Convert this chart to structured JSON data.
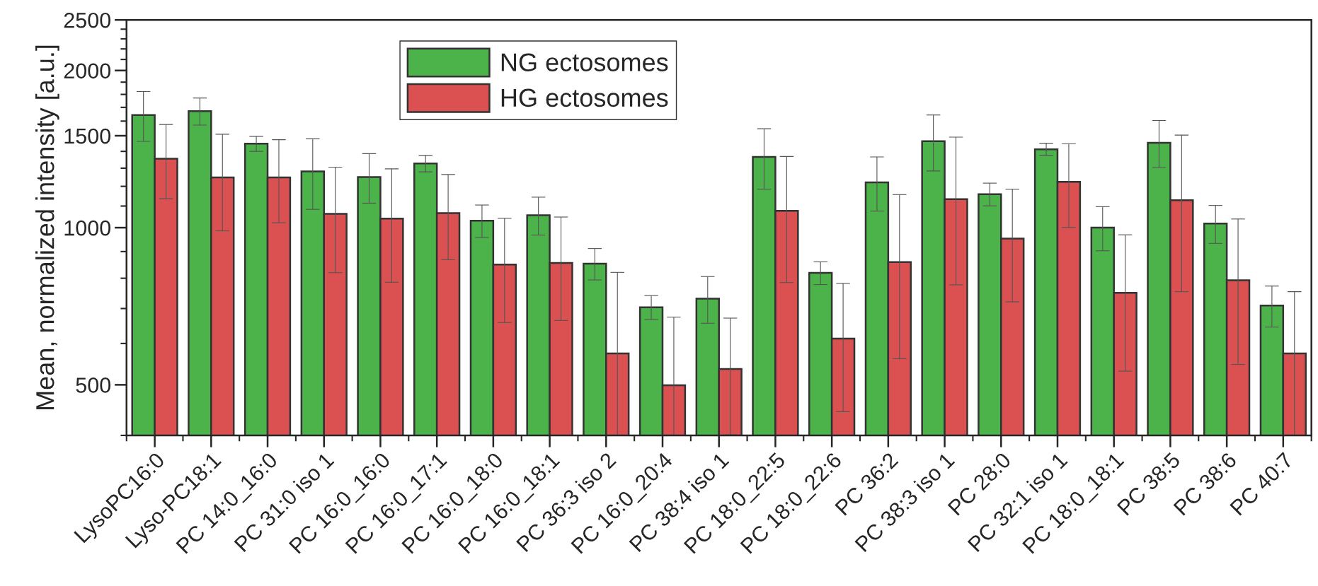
{
  "chart_data": {
    "type": "bar",
    "ylabel": "Mean, normalized intensity [a.u.]",
    "categories": [
      "LysoPC16:0",
      "Lyso-PC18:1",
      "PC 14:0_16:0",
      "PC 31:0 iso 1",
      "PC 16:0_16:0",
      "PC 16:0_17:1",
      "PC 16:0_18:0",
      "PC 16:0_18:1",
      "PC 36:3 iso 2",
      "PC 16:0_20:4",
      "PC 38:4 iso 1",
      "PC 18:0_22:5",
      "PC 18:0_22:6",
      "PC 36:2",
      "PC 38:3 iso 1",
      "PC 28:0",
      "PC 32:1 iso 1",
      "PC 18:0_18:1",
      "PC 38:5",
      "PC 38:6",
      "PC 40:7"
    ],
    "series": [
      {
        "name": "NG ectosomes",
        "color": "#4cb34a",
        "values": [
          1643,
          1672,
          1448,
          1282,
          1250,
          1327,
          1031,
          1056,
          853,
          704,
          731,
          1366,
          819,
          1221,
          1464,
          1159,
          1413,
          1000,
          1454,
          1018,
          709
        ],
        "errors": [
          180,
          100,
          48,
          198,
          136,
          48,
          74,
          88,
          59,
          37,
          75,
          181,
          41,
          145,
          180,
          58,
          38,
          97,
          150,
          85,
          64
        ]
      },
      {
        "name": "HG ectosomes",
        "color": "#db5152",
        "values": [
          1356,
          1248,
          1248,
          1063,
          1041,
          1066,
          850,
          856,
          574,
          499,
          536,
          1077,
          613,
          859,
          1134,
          953,
          1224,
          750,
          1129,
          793,
          574
        ],
        "errors": [
          220,
          262,
          226,
          243,
          255,
          198,
          192,
          192,
          [
            400,
            821
          ],
          [
            400,
            674
          ],
          135,
          292,
          169,
          298,
          357,
          232,
          223,
          219,
          375,
          246,
          [
            400,
            754
          ]
        ]
      }
    ],
    "log": "y",
    "ylim": [
      400,
      2500
    ],
    "yticks": [
      500,
      1000,
      1500,
      2000,
      2500
    ],
    "legend": "top left",
    "grid": false
  }
}
